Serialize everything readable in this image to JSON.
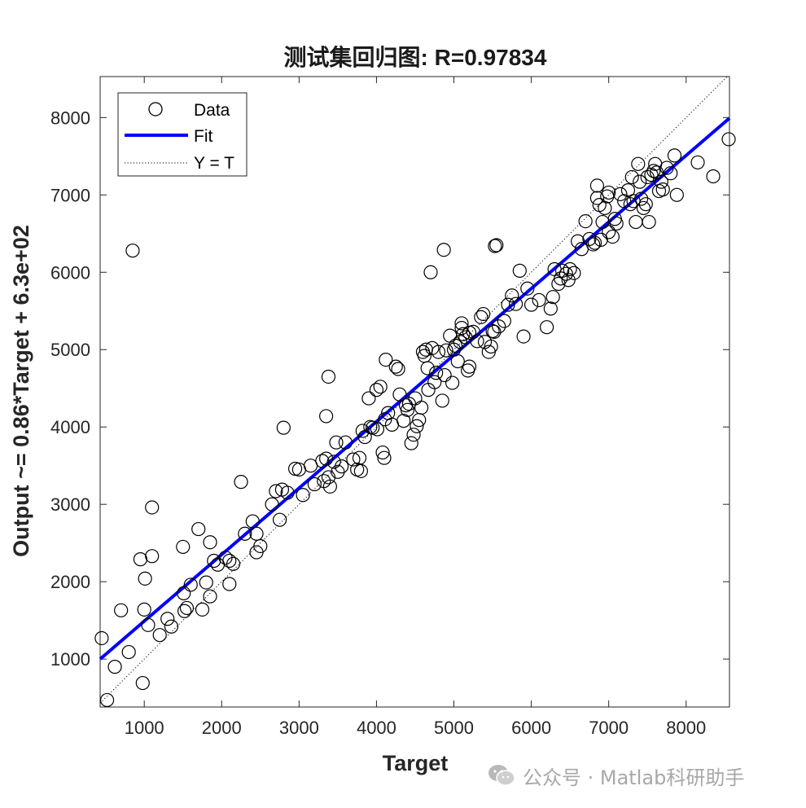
{
  "chart_data": {
    "type": "scatter",
    "title": "测试集回归图: R=0.97834",
    "xlabel": "Target",
    "ylabel": "Output ~= 0.86*Target + 6.3e+02",
    "xlim": [
      430,
      8560
    ],
    "ylim": [
      380,
      8530
    ],
    "xticks": [
      1000,
      2000,
      3000,
      4000,
      5000,
      6000,
      7000,
      8000
    ],
    "yticks": [
      1000,
      2000,
      3000,
      4000,
      5000,
      6000,
      7000,
      8000
    ],
    "grid": false,
    "legend_position": "top-left",
    "legend": [
      {
        "label": "Data",
        "style": "circle",
        "color": "#000000"
      },
      {
        "label": "Fit",
        "style": "line",
        "color": "#0000ff"
      },
      {
        "label": "Y = T",
        "style": "dotted",
        "color": "#000000"
      }
    ],
    "fit": {
      "slope": 0.86,
      "intercept": 630,
      "color": "#0000ff"
    },
    "identity_line": {
      "color": "#000000"
    },
    "series": [
      {
        "name": "Data",
        "x": [
          450,
          520,
          620,
          700,
          800,
          950,
          980,
          1000,
          1010,
          1050,
          1100,
          1100,
          1200,
          1300,
          1350,
          1500,
          1510,
          1520,
          1550,
          1600,
          1700,
          1750,
          1800,
          1850,
          1850,
          1900,
          1950,
          2050,
          2100,
          2100,
          2150,
          2250,
          2300,
          2400,
          2450,
          2450,
          2500,
          2650,
          2700,
          2750,
          2780,
          2800,
          2850,
          2950,
          3000,
          3050,
          3150,
          3200,
          3300,
          3320,
          3350,
          3350,
          3380,
          3380,
          3400,
          3450,
          3480,
          3500,
          3550,
          3600,
          3700,
          3750,
          3780,
          3800,
          3820,
          3850,
          3900,
          3920,
          3950,
          4000,
          4010,
          4050,
          4080,
          4100,
          4110,
          4120,
          4150,
          4200,
          4250,
          4280,
          4300,
          4350,
          4380,
          4400,
          4420,
          4450,
          4480,
          4500,
          4520,
          4550,
          4580,
          4600,
          4620,
          4640,
          4660,
          4670,
          4700,
          4720,
          4750,
          4770,
          4800,
          4850,
          4880,
          4900,
          4950,
          4980,
          5000,
          5020,
          5050,
          5080,
          5100,
          5100,
          5120,
          5150,
          5180,
          5200,
          5200,
          5250,
          5300,
          5350,
          5380,
          5400,
          5450,
          5480,
          5500,
          5520,
          5550,
          5580,
          5650,
          5700,
          5750,
          5800,
          5850,
          5900,
          5950,
          6000,
          6100,
          6200,
          6250,
          6280,
          6300,
          6350,
          6380,
          6400,
          6450,
          6480,
          6500,
          6550,
          6600,
          6650,
          6700,
          6750,
          6800,
          6820,
          6850,
          6850,
          6880,
          6900,
          6920,
          6950,
          6980,
          7000,
          7000,
          7050,
          7080,
          7100,
          7150,
          7200,
          7250,
          7280,
          7300,
          7320,
          7350,
          7380,
          7400,
          7420,
          7450,
          7480,
          7500,
          7520,
          7550,
          7580,
          7600,
          7620,
          7650,
          7680,
          7700,
          7750,
          7800,
          7850,
          7880,
          8150,
          8350,
          8550
        ],
        "y": [
          1270,
          470,
          900,
          1630,
          1090,
          2290,
          690,
          1640,
          2040,
          1440,
          2330,
          2960,
          1310,
          1520,
          1420,
          2450,
          1850,
          1620,
          1660,
          1960,
          2680,
          1640,
          1990,
          2510,
          1810,
          2270,
          2220,
          2310,
          2270,
          1970,
          2230,
          3290,
          2620,
          2780,
          2620,
          2380,
          2460,
          3000,
          3170,
          2800,
          3190,
          3990,
          3150,
          3460,
          3450,
          3120,
          3500,
          3260,
          3560,
          3300,
          4140,
          3590,
          3350,
          4650,
          3230,
          3550,
          3800,
          3420,
          3490,
          3800,
          3580,
          3450,
          3600,
          3430,
          3950,
          3870,
          4370,
          4000,
          3990,
          4480,
          3970,
          4520,
          3670,
          3600,
          4100,
          4870,
          4180,
          4030,
          4780,
          4750,
          4420,
          4080,
          4280,
          4220,
          4300,
          3790,
          3900,
          4370,
          4010,
          4090,
          4250,
          4970,
          4920,
          5000,
          4760,
          4480,
          6000,
          5020,
          4580,
          4700,
          4970,
          4340,
          4670,
          4990,
          5180,
          4570,
          5000,
          5050,
          4850,
          5100,
          5280,
          5340,
          5200,
          5160,
          4730,
          5220,
          4780,
          5230,
          5110,
          5420,
          5460,
          5100,
          4970,
          5040,
          5240,
          5230,
          6350,
          5300,
          5370,
          5580,
          5700,
          5590,
          6020,
          5170,
          5790,
          5580,
          5640,
          5290,
          5530,
          5680,
          6040,
          5850,
          5920,
          6020,
          5980,
          5900,
          6040,
          5990,
          6400,
          6300,
          6660,
          6430,
          6360,
          6380,
          6960,
          7120,
          6870,
          6420,
          6650,
          6830,
          6980,
          6520,
          7030,
          6460,
          6690,
          6630,
          7010,
          6920,
          7060,
          6880,
          7230,
          6920,
          6650,
          7400,
          7170,
          6950,
          6830,
          6880,
          7230,
          6650,
          7260,
          7310,
          7400,
          7290,
          7050,
          7170,
          7070,
          7350,
          7280,
          7510,
          7000,
          7420,
          7240,
          7720
        ]
      },
      {
        "name": "",
        "x": [
          850,
          4870,
          5530
        ],
        "y": [
          6280,
          6290,
          6340
        ]
      }
    ]
  },
  "watermark": {
    "text": "公众号 · Matlab科研助手",
    "icon": "wechat-icon"
  }
}
